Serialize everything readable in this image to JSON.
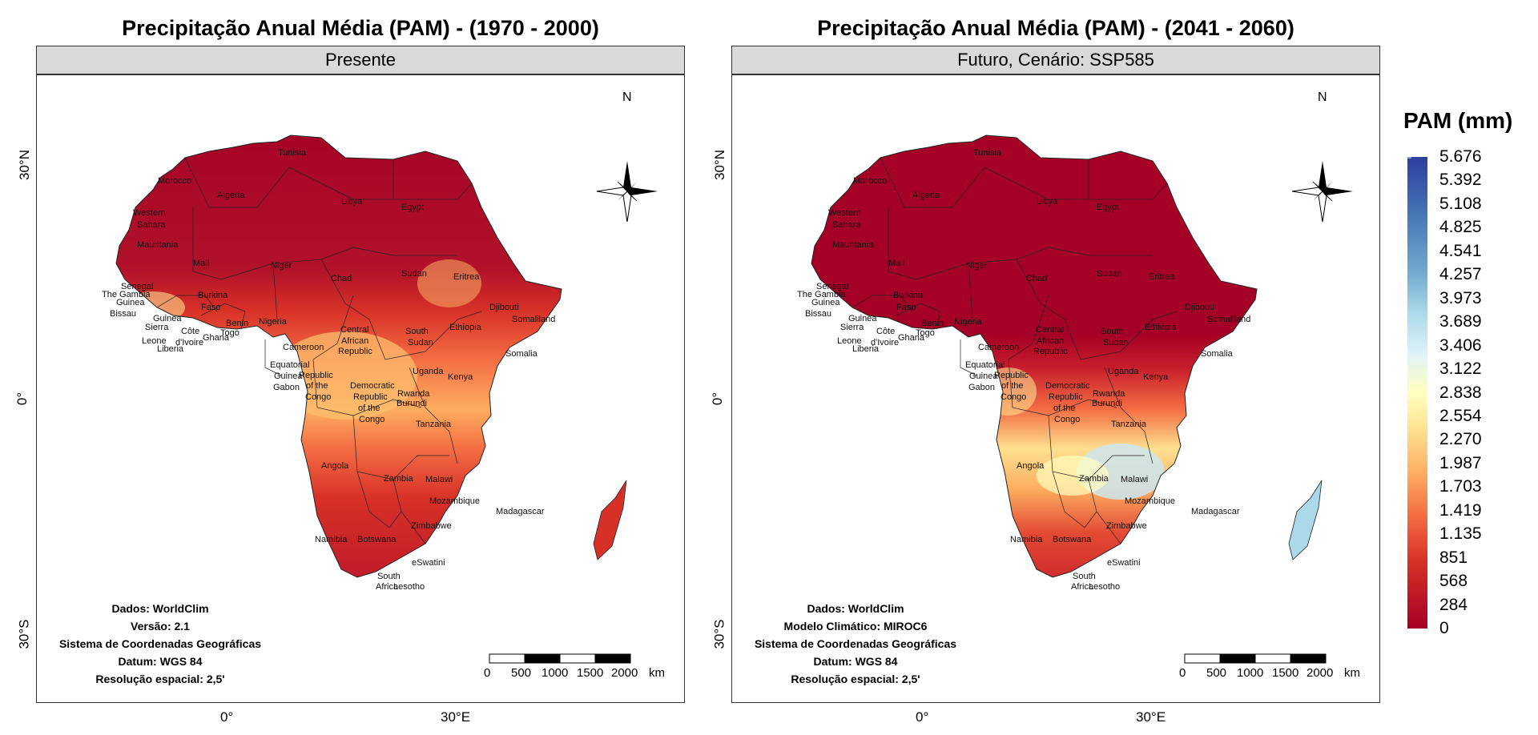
{
  "panels": [
    {
      "title": "Precipitação Anual Média (PAM) - (1970 - 2000)",
      "strip": "Presente",
      "credits": [
        "Dados: WorldClim",
        "Versão: 2.1",
        "Sistema de Coordenadas Geográficas",
        "Datum: WGS 84",
        "Resolução espacial: 2,5'"
      ],
      "scenario": "present"
    },
    {
      "title": "Precipitação Anual Média (PAM) - (2041 - 2060)",
      "strip": "Futuro, Cenário: SSP585",
      "credits": [
        "Dados: WorldClim",
        "Modelo Climático: MIROC6",
        "Sistema de Coordenadas Geográficas",
        "Datum: WGS 84",
        "Resolução espacial: 2,5'"
      ],
      "scenario": "future"
    }
  ],
  "axes": {
    "y_ticks": [
      "30°N",
      "0°",
      "30°S"
    ],
    "x_ticks": [
      "0°",
      "30°E"
    ]
  },
  "north_arrow": "N",
  "scale_bar": {
    "labels": [
      "0",
      "500",
      "1000",
      "1500",
      "2000"
    ],
    "unit": "km"
  },
  "countries": [
    "Tunisia",
    "Morocco",
    "Algeria",
    "Libya",
    "Egypt",
    "Western",
    "Sahara",
    "Mauritania",
    "Mali",
    "Niger",
    "Chad",
    "Sudan",
    "Eritrea",
    "Senegal",
    "The Gambia",
    "Guinea",
    "Bissau",
    "Burkina",
    "Faso",
    "Guinea",
    "Sierra",
    "Leone",
    "Liberia",
    "Côte",
    "d'Ivoire",
    "Ghana",
    "Benin",
    "Togo",
    "Nigeria",
    "Djibouti",
    "Somaliland",
    "Ethiopia",
    "Central",
    "African",
    "Republic",
    "South",
    "Sudan",
    "Cameroon",
    "Somalia",
    "Equatorial",
    "Guinea",
    "Gabon",
    "Republic",
    "of the",
    "Congo",
    "Democratic",
    "Republic",
    "of the",
    "Congo",
    "Uganda",
    "Kenya",
    "Rwanda",
    "Burundi",
    "Tanzania",
    "Angola",
    "Zambia",
    "Malawi",
    "Mozambique",
    "Madagascar",
    "Zimbabwe",
    "Namibia",
    "Botswana",
    "eSwatini",
    "South",
    "Africa",
    "Lesotho"
  ],
  "legend": {
    "title": "PAM (mm)",
    "ticks": [
      "5.676",
      "5.392",
      "5.108",
      "4.825",
      "4.541",
      "4.257",
      "3.973",
      "3.689",
      "3.406",
      "3.122",
      "2.838",
      "2.554",
      "2.270",
      "1.987",
      "1.703",
      "1.419",
      "1.135",
      "851",
      "568",
      "284",
      "0"
    ],
    "colors": [
      "#2c3e9e",
      "#4575b4",
      "#74add1",
      "#abd9e9",
      "#e0f3f8",
      "#ffffbf",
      "#fee090",
      "#fdae61",
      "#f46d43",
      "#d73027",
      "#a50026"
    ]
  }
}
